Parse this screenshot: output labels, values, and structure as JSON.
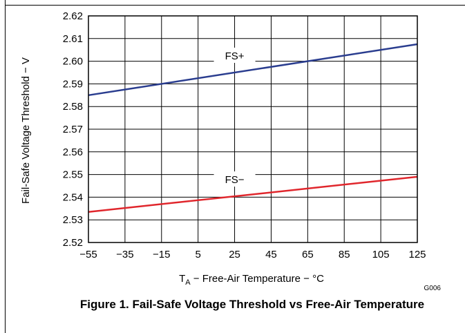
{
  "chart_data": {
    "type": "line",
    "caption": "Figure 1. Fail-Safe Voltage Threshold vs Free-Air Temperature",
    "xlabel_main": "T",
    "xlabel_sub": "A",
    "xlabel_rest": " − Free-Air Temperature − °C",
    "ylabel": "Fail-Safe Voltage Threshold − V",
    "code": "G006",
    "xlim": [
      -55,
      125
    ],
    "ylim": [
      2.52,
      2.62
    ],
    "xticks": [
      -55,
      -35,
      -15,
      5,
      25,
      45,
      65,
      85,
      105,
      125
    ],
    "xtick_labels": [
      "−55",
      "−35",
      "−15",
      "5",
      "25",
      "45",
      "65",
      "85",
      "105",
      "125"
    ],
    "yticks": [
      2.52,
      2.53,
      2.54,
      2.55,
      2.56,
      2.57,
      2.58,
      2.59,
      2.6,
      2.61,
      2.62
    ],
    "ytick_labels": [
      "2.52",
      "2.53",
      "2.54",
      "2.55",
      "2.56",
      "2.57",
      "2.58",
      "2.59",
      "2.60",
      "2.61",
      "2.62"
    ],
    "grid": true,
    "series": [
      {
        "name": "FS+",
        "color": "#2a3d8f",
        "x": [
          -55,
          125
        ],
        "y": [
          2.585,
          2.6075
        ],
        "label_x": 25
      },
      {
        "name": "FS−",
        "color": "#e0262c",
        "x": [
          -55,
          125
        ],
        "y": [
          2.5335,
          2.549
        ],
        "label_x": 25
      }
    ]
  }
}
